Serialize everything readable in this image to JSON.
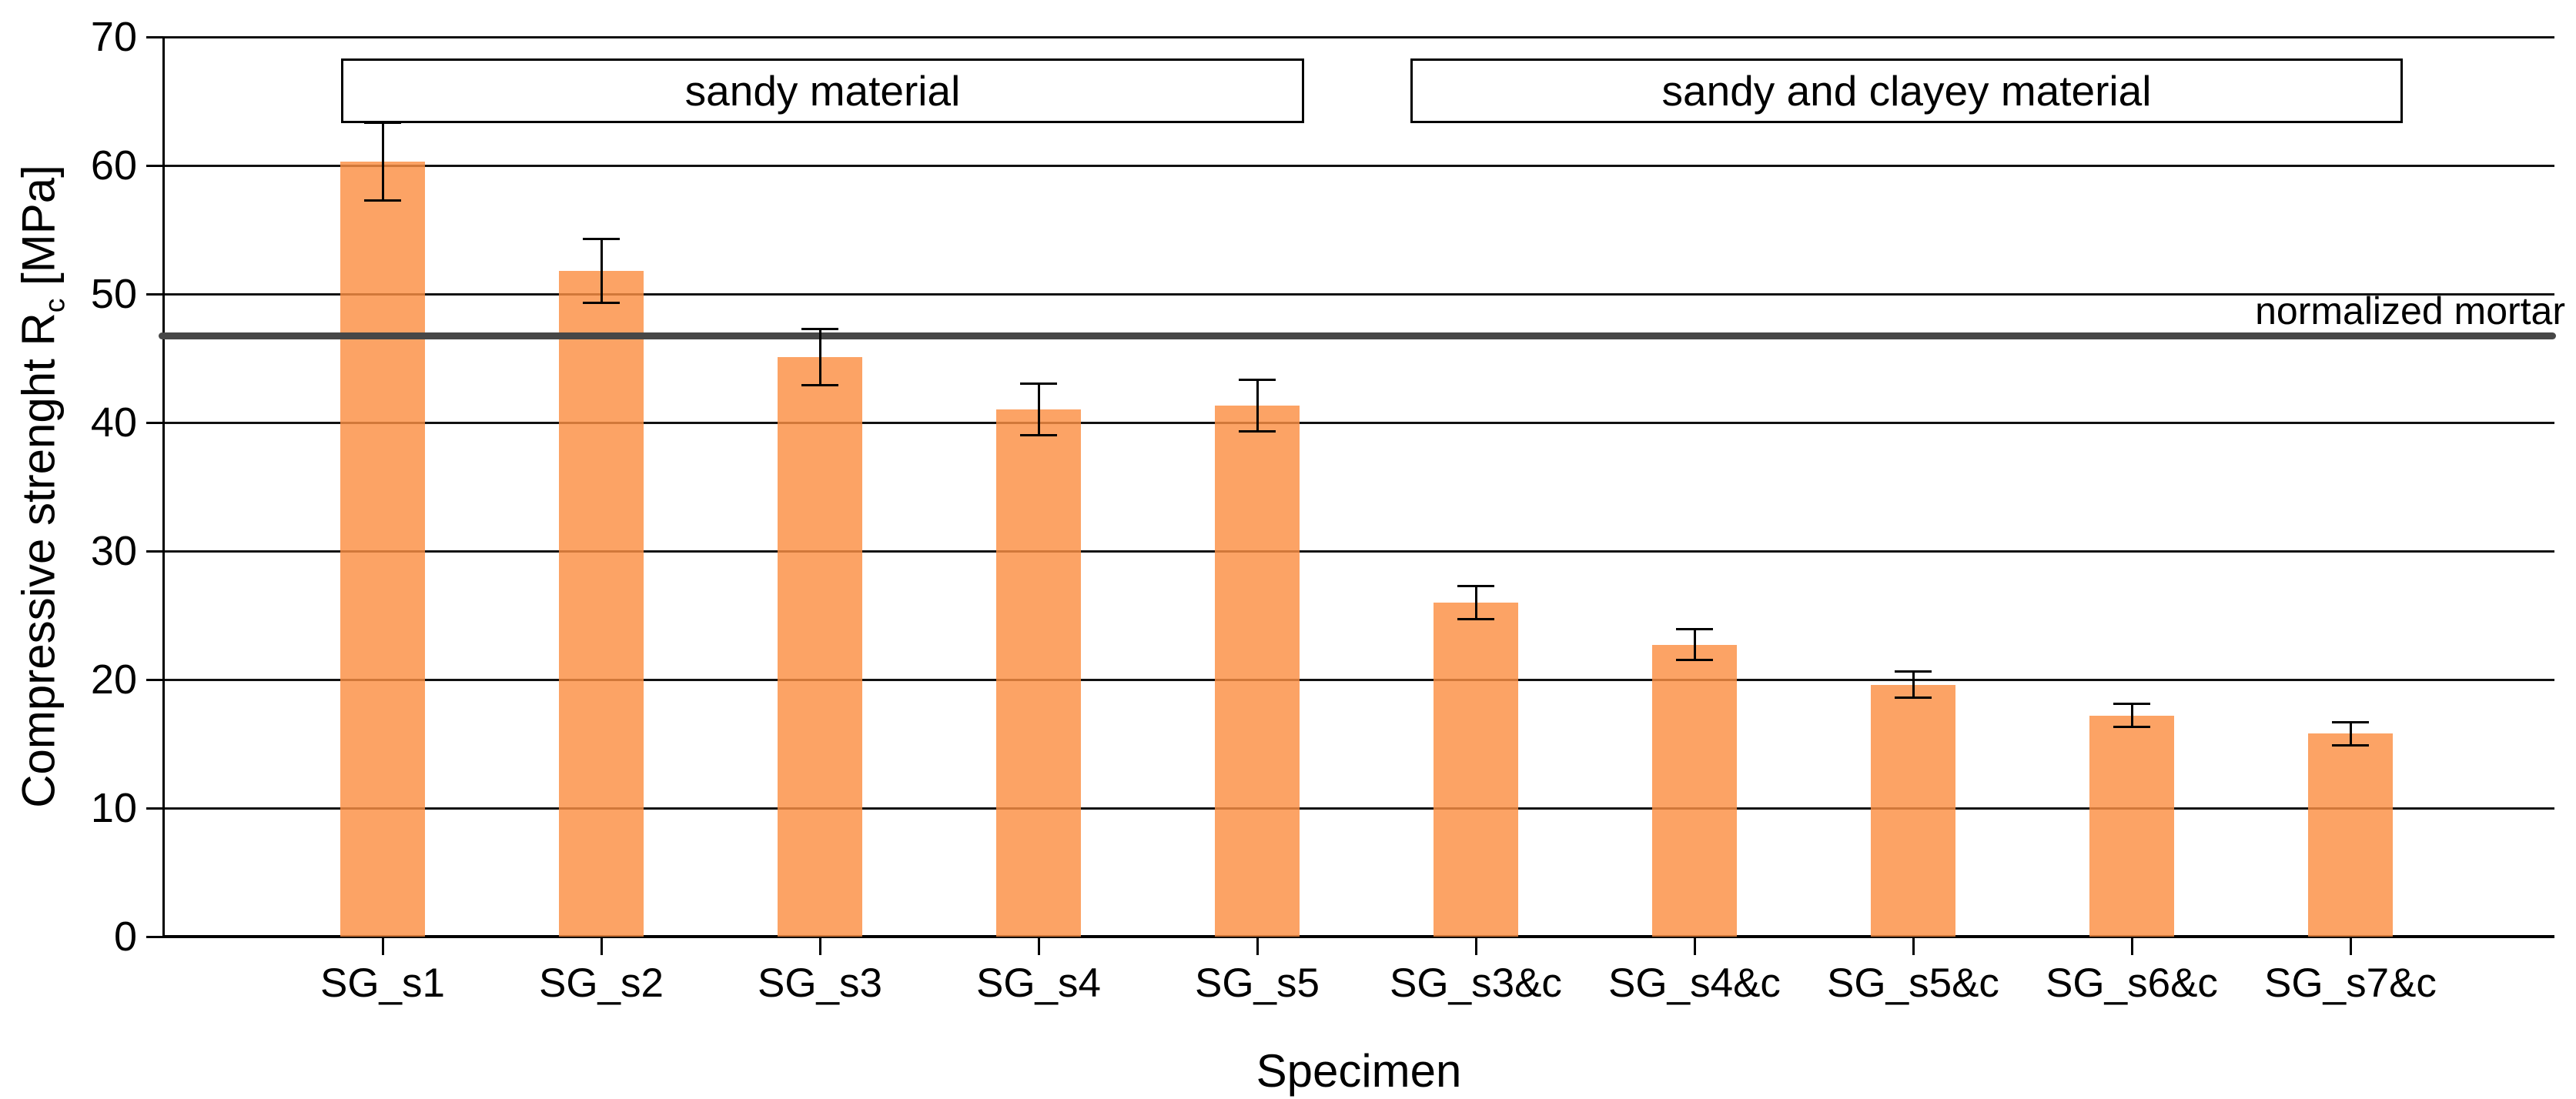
{
  "chart_data": {
    "type": "bar",
    "title": "",
    "categories": [
      "SG_s1",
      "SG_s2",
      "SG_s3",
      "SG_s4",
      "SG_s5",
      "SG_s3&c",
      "SG_s4&c",
      "SG_s5&c",
      "SG_s6&c",
      "SG_s7&c"
    ],
    "values": [
      60.3,
      51.8,
      45.1,
      41.0,
      41.3,
      26.0,
      22.7,
      19.6,
      17.2,
      15.8
    ],
    "error_bars": [
      3.0,
      2.5,
      2.2,
      2.0,
      2.0,
      1.3,
      1.2,
      1.0,
      0.9,
      0.9
    ],
    "xlabel": "Specimen",
    "ylabel_prefix": "Compressive strenght R",
    "ylabel_sub": "c",
    "ylabel_suffix": " [MPa]",
    "ylim": [
      0,
      70
    ],
    "yticks": [
      0,
      10,
      20,
      30,
      40,
      50,
      60,
      70
    ],
    "grid": true,
    "legend": false,
    "reference_line": {
      "label": "normalized mortar",
      "value": 46.7
    },
    "group_annotations": [
      {
        "label": "sandy material",
        "covers": [
          "SG_s1",
          "SG_s5"
        ]
      },
      {
        "label": "sandy and clayey material",
        "covers": [
          "SG_s3&c",
          "SG_s7&c"
        ]
      }
    ],
    "colors": {
      "bar": "#FB8F43",
      "bar_displayed": "#FCA365",
      "reference_line": "#474747",
      "grid": "#111111",
      "text": "#000000",
      "background": "#FFFFFF"
    }
  }
}
